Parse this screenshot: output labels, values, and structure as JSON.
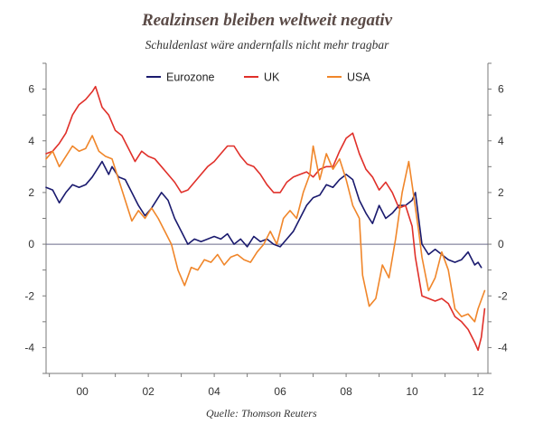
{
  "title": "Realzinsen bleiben weltweit negativ",
  "subtitle": "Schuldenlast wäre andernfalls nicht mehr tragbar",
  "source": "Quelle: Thomson Reuters",
  "colors": {
    "eurozone": "#1a1a6e",
    "uk": "#e0302a",
    "usa": "#f0862a",
    "axis": "#7a7a7a",
    "zero_line": "#6a6a8a"
  },
  "chart_data": {
    "type": "line",
    "title": "Realzinsen bleiben weltweit negativ",
    "subtitle": "Schuldenlast wäre andernfalls nicht mehr tragbar",
    "xlabel": "",
    "ylabel": "",
    "xlim": [
      1998.9,
      2012.3
    ],
    "ylim": [
      -5,
      7
    ],
    "x_ticks": [
      2000,
      2002,
      2004,
      2006,
      2008,
      2010,
      2012
    ],
    "x_tick_labels": [
      "00",
      "02",
      "04",
      "06",
      "08",
      "10",
      "12"
    ],
    "y_ticks": [
      -4,
      -2,
      0,
      2,
      4,
      6
    ],
    "y_tick_labels": [
      "-4",
      "-2",
      "0",
      "2",
      "4",
      "6"
    ],
    "grid": false,
    "zero_line": true,
    "legend_position": "top",
    "series": [
      {
        "name": "Eurozone",
        "color": "#1a1a6e",
        "points": [
          [
            1998.9,
            2.2
          ],
          [
            1999.1,
            2.1
          ],
          [
            1999.3,
            1.6
          ],
          [
            1999.5,
            2.0
          ],
          [
            1999.7,
            2.3
          ],
          [
            1999.9,
            2.2
          ],
          [
            2000.1,
            2.3
          ],
          [
            2000.3,
            2.6
          ],
          [
            2000.5,
            3.0
          ],
          [
            2000.6,
            3.2
          ],
          [
            2000.8,
            2.7
          ],
          [
            2000.9,
            3.0
          ],
          [
            2001.1,
            2.6
          ],
          [
            2001.3,
            2.5
          ],
          [
            2001.5,
            2.0
          ],
          [
            2001.7,
            1.5
          ],
          [
            2001.9,
            1.1
          ],
          [
            2002.1,
            1.4
          ],
          [
            2002.3,
            1.8
          ],
          [
            2002.4,
            2.0
          ],
          [
            2002.6,
            1.7
          ],
          [
            2002.8,
            1.0
          ],
          [
            2003.0,
            0.5
          ],
          [
            2003.2,
            0.0
          ],
          [
            2003.4,
            0.2
          ],
          [
            2003.6,
            0.1
          ],
          [
            2003.8,
            0.2
          ],
          [
            2004.0,
            0.3
          ],
          [
            2004.2,
            0.2
          ],
          [
            2004.4,
            0.4
          ],
          [
            2004.6,
            0.0
          ],
          [
            2004.8,
            0.2
          ],
          [
            2005.0,
            -0.1
          ],
          [
            2005.2,
            0.3
          ],
          [
            2005.4,
            0.1
          ],
          [
            2005.6,
            0.2
          ],
          [
            2005.8,
            0.0
          ],
          [
            2006.0,
            -0.1
          ],
          [
            2006.2,
            0.2
          ],
          [
            2006.4,
            0.5
          ],
          [
            2006.6,
            1.0
          ],
          [
            2006.8,
            1.5
          ],
          [
            2007.0,
            1.8
          ],
          [
            2007.2,
            1.9
          ],
          [
            2007.4,
            2.3
          ],
          [
            2007.6,
            2.2
          ],
          [
            2007.8,
            2.5
          ],
          [
            2008.0,
            2.7
          ],
          [
            2008.2,
            2.5
          ],
          [
            2008.4,
            1.7
          ],
          [
            2008.6,
            1.2
          ],
          [
            2008.7,
            1.0
          ],
          [
            2008.8,
            0.8
          ],
          [
            2009.0,
            1.5
          ],
          [
            2009.2,
            1.0
          ],
          [
            2009.4,
            1.2
          ],
          [
            2009.6,
            1.5
          ],
          [
            2009.8,
            1.5
          ],
          [
            2010.0,
            1.7
          ],
          [
            2010.1,
            2.0
          ],
          [
            2010.3,
            0.0
          ],
          [
            2010.5,
            -0.4
          ],
          [
            2010.7,
            -0.2
          ],
          [
            2010.9,
            -0.4
          ],
          [
            2011.1,
            -0.6
          ],
          [
            2011.3,
            -0.7
          ],
          [
            2011.5,
            -0.6
          ],
          [
            2011.7,
            -0.3
          ],
          [
            2011.9,
            -0.8
          ],
          [
            2012.0,
            -0.7
          ],
          [
            2012.1,
            -0.9
          ]
        ]
      },
      {
        "name": "UK",
        "color": "#e0302a",
        "points": [
          [
            1998.9,
            3.5
          ],
          [
            1999.1,
            3.6
          ],
          [
            1999.3,
            3.9
          ],
          [
            1999.5,
            4.3
          ],
          [
            1999.7,
            5.0
          ],
          [
            1999.9,
            5.4
          ],
          [
            2000.1,
            5.6
          ],
          [
            2000.3,
            5.9
          ],
          [
            2000.4,
            6.1
          ],
          [
            2000.6,
            5.3
          ],
          [
            2000.8,
            5.0
          ],
          [
            2001.0,
            4.4
          ],
          [
            2001.2,
            4.2
          ],
          [
            2001.4,
            3.7
          ],
          [
            2001.6,
            3.2
          ],
          [
            2001.8,
            3.6
          ],
          [
            2002.0,
            3.4
          ],
          [
            2002.2,
            3.3
          ],
          [
            2002.4,
            3.0
          ],
          [
            2002.6,
            2.7
          ],
          [
            2002.8,
            2.4
          ],
          [
            2003.0,
            2.0
          ],
          [
            2003.2,
            2.1
          ],
          [
            2003.4,
            2.4
          ],
          [
            2003.6,
            2.7
          ],
          [
            2003.8,
            3.0
          ],
          [
            2004.0,
            3.2
          ],
          [
            2004.2,
            3.5
          ],
          [
            2004.4,
            3.8
          ],
          [
            2004.6,
            3.8
          ],
          [
            2004.8,
            3.4
          ],
          [
            2005.0,
            3.1
          ],
          [
            2005.2,
            3.0
          ],
          [
            2005.4,
            2.7
          ],
          [
            2005.6,
            2.3
          ],
          [
            2005.8,
            2.0
          ],
          [
            2006.0,
            2.0
          ],
          [
            2006.2,
            2.4
          ],
          [
            2006.4,
            2.6
          ],
          [
            2006.6,
            2.7
          ],
          [
            2006.8,
            2.8
          ],
          [
            2007.0,
            2.6
          ],
          [
            2007.2,
            2.9
          ],
          [
            2007.4,
            3.0
          ],
          [
            2007.6,
            3.0
          ],
          [
            2007.8,
            3.6
          ],
          [
            2008.0,
            4.1
          ],
          [
            2008.2,
            4.3
          ],
          [
            2008.4,
            3.5
          ],
          [
            2008.6,
            2.9
          ],
          [
            2008.8,
            2.6
          ],
          [
            2009.0,
            2.1
          ],
          [
            2009.2,
            2.4
          ],
          [
            2009.4,
            2.0
          ],
          [
            2009.6,
            1.4
          ],
          [
            2009.8,
            1.5
          ],
          [
            2010.0,
            0.7
          ],
          [
            2010.1,
            -0.5
          ],
          [
            2010.3,
            -2.0
          ],
          [
            2010.5,
            -2.1
          ],
          [
            2010.7,
            -2.2
          ],
          [
            2010.9,
            -2.1
          ],
          [
            2011.1,
            -2.3
          ],
          [
            2011.3,
            -2.8
          ],
          [
            2011.5,
            -3.0
          ],
          [
            2011.7,
            -3.3
          ],
          [
            2011.9,
            -3.8
          ],
          [
            2012.0,
            -4.1
          ],
          [
            2012.1,
            -3.6
          ],
          [
            2012.2,
            -2.5
          ]
        ]
      },
      {
        "name": "USA",
        "color": "#f0862a",
        "points": [
          [
            1998.9,
            3.3
          ],
          [
            1999.1,
            3.6
          ],
          [
            1999.3,
            3.0
          ],
          [
            1999.5,
            3.4
          ],
          [
            1999.7,
            3.8
          ],
          [
            1999.9,
            3.6
          ],
          [
            2000.1,
            3.7
          ],
          [
            2000.3,
            4.2
          ],
          [
            2000.5,
            3.6
          ],
          [
            2000.7,
            3.4
          ],
          [
            2000.9,
            3.3
          ],
          [
            2001.1,
            2.5
          ],
          [
            2001.3,
            1.7
          ],
          [
            2001.5,
            0.9
          ],
          [
            2001.7,
            1.3
          ],
          [
            2001.9,
            1.0
          ],
          [
            2002.1,
            1.4
          ],
          [
            2002.3,
            1.0
          ],
          [
            2002.5,
            0.5
          ],
          [
            2002.7,
            0.0
          ],
          [
            2002.9,
            -1.0
          ],
          [
            2003.1,
            -1.6
          ],
          [
            2003.3,
            -0.9
          ],
          [
            2003.5,
            -1.0
          ],
          [
            2003.7,
            -0.6
          ],
          [
            2003.9,
            -0.7
          ],
          [
            2004.1,
            -0.4
          ],
          [
            2004.3,
            -0.8
          ],
          [
            2004.5,
            -0.5
          ],
          [
            2004.7,
            -0.4
          ],
          [
            2004.9,
            -0.6
          ],
          [
            2005.1,
            -0.7
          ],
          [
            2005.3,
            -0.3
          ],
          [
            2005.5,
            0.0
          ],
          [
            2005.7,
            0.5
          ],
          [
            2005.9,
            0.0
          ],
          [
            2006.1,
            1.0
          ],
          [
            2006.3,
            1.3
          ],
          [
            2006.5,
            1.0
          ],
          [
            2006.7,
            2.0
          ],
          [
            2006.9,
            2.7
          ],
          [
            2007.0,
            3.8
          ],
          [
            2007.2,
            2.5
          ],
          [
            2007.4,
            3.5
          ],
          [
            2007.6,
            2.9
          ],
          [
            2007.8,
            3.3
          ],
          [
            2008.0,
            2.5
          ],
          [
            2008.2,
            1.5
          ],
          [
            2008.4,
            1.0
          ],
          [
            2008.5,
            -1.2
          ],
          [
            2008.7,
            -2.4
          ],
          [
            2008.9,
            -2.1
          ],
          [
            2009.1,
            -0.8
          ],
          [
            2009.3,
            -1.3
          ],
          [
            2009.5,
            0.2
          ],
          [
            2009.7,
            2.0
          ],
          [
            2009.9,
            3.2
          ],
          [
            2010.0,
            2.3
          ],
          [
            2010.2,
            0.5
          ],
          [
            2010.3,
            -0.5
          ],
          [
            2010.5,
            -1.8
          ],
          [
            2010.7,
            -1.3
          ],
          [
            2010.9,
            -0.3
          ],
          [
            2011.1,
            -1.0
          ],
          [
            2011.3,
            -2.5
          ],
          [
            2011.5,
            -2.8
          ],
          [
            2011.7,
            -2.7
          ],
          [
            2011.9,
            -3.0
          ],
          [
            2012.0,
            -2.5
          ],
          [
            2012.2,
            -1.8
          ]
        ]
      }
    ]
  }
}
